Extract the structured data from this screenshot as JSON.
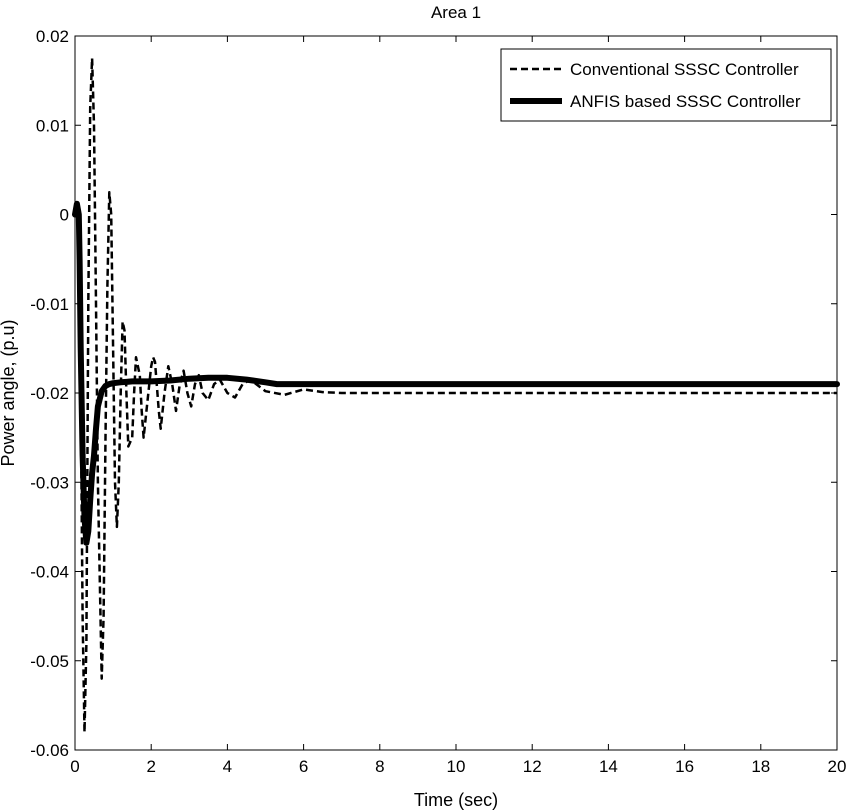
{
  "chart_data": {
    "type": "line",
    "title": "Area 1",
    "xlabel": "Time (sec)",
    "ylabel": "Power angle, (p.u)",
    "xlim": [
      0,
      20
    ],
    "ylim": [
      -0.06,
      0.02
    ],
    "x_ticks": [
      0,
      2,
      4,
      6,
      8,
      10,
      12,
      14,
      16,
      18,
      20
    ],
    "y_ticks": [
      0.02,
      0.01,
      0,
      -0.01,
      -0.02,
      -0.03,
      -0.04,
      -0.05,
      -0.06
    ],
    "x_tick_labels": [
      "0",
      "2",
      "4",
      "6",
      "8",
      "10",
      "12",
      "14",
      "16",
      "18",
      "20"
    ],
    "y_tick_labels": [
      "0.02",
      "0.01",
      "0",
      "-0.01",
      "-0.02",
      "-0.03",
      "-0.04",
      "-0.05",
      "-0.06"
    ],
    "grid": false,
    "legend_position": "top-right",
    "series": [
      {
        "name": "Conventional SSSC Controller",
        "style": "dashed",
        "color": "#000000",
        "x": [
          0,
          0.05,
          0.1,
          0.15,
          0.2,
          0.25,
          0.3,
          0.35,
          0.4,
          0.45,
          0.5,
          0.55,
          0.6,
          0.7,
          0.75,
          0.8,
          0.85,
          0.9,
          0.95,
          1.0,
          1.05,
          1.1,
          1.15,
          1.2,
          1.25,
          1.3,
          1.35,
          1.4,
          1.5,
          1.55,
          1.6,
          1.7,
          1.75,
          1.8,
          1.9,
          2.0,
          2.05,
          2.1,
          2.2,
          2.25,
          2.35,
          2.45,
          2.55,
          2.65,
          2.75,
          2.85,
          2.95,
          3.05,
          3.15,
          3.25,
          3.35,
          3.5,
          3.65,
          3.8,
          4.0,
          4.2,
          4.4,
          4.6,
          5.0,
          5.5,
          6.0,
          6.5,
          7.0,
          8.0,
          10.0,
          14.0,
          20.0
        ],
        "y": [
          0.0,
          0.001,
          -0.002,
          -0.02,
          -0.045,
          -0.058,
          -0.048,
          -0.01,
          0.012,
          0.0175,
          0.01,
          -0.01,
          -0.03,
          -0.052,
          -0.045,
          -0.025,
          -0.008,
          0.0025,
          0.0,
          -0.015,
          -0.03,
          -0.035,
          -0.03,
          -0.02,
          -0.012,
          -0.013,
          -0.02,
          -0.026,
          -0.025,
          -0.02,
          -0.016,
          -0.018,
          -0.022,
          -0.025,
          -0.021,
          -0.017,
          -0.016,
          -0.0165,
          -0.022,
          -0.024,
          -0.02,
          -0.017,
          -0.019,
          -0.022,
          -0.019,
          -0.0175,
          -0.02,
          -0.0215,
          -0.019,
          -0.018,
          -0.02,
          -0.0208,
          -0.019,
          -0.0185,
          -0.02,
          -0.0205,
          -0.019,
          -0.0185,
          -0.0198,
          -0.0202,
          -0.0196,
          -0.0199,
          -0.02,
          -0.02,
          -0.02,
          -0.02,
          -0.02
        ]
      },
      {
        "name": "ANFIS based SSSC Controller",
        "style": "solid",
        "color": "#000000",
        "x": [
          0,
          0.05,
          0.1,
          0.12,
          0.15,
          0.2,
          0.25,
          0.3,
          0.35,
          0.4,
          0.45,
          0.5,
          0.55,
          0.6,
          0.7,
          0.8,
          0.9,
          1.0,
          1.2,
          1.5,
          2.0,
          2.5,
          3.0,
          3.5,
          4.0,
          4.5,
          5.0,
          5.3,
          6.0,
          8.0,
          10.0,
          14.0,
          20.0
        ],
        "y": [
          0.0,
          0.0012,
          0.0,
          -0.005,
          -0.015,
          -0.027,
          -0.034,
          -0.0368,
          -0.0355,
          -0.032,
          -0.029,
          -0.027,
          -0.024,
          -0.0215,
          -0.0198,
          -0.0192,
          -0.019,
          -0.0189,
          -0.0188,
          -0.0187,
          -0.0187,
          -0.0186,
          -0.0184,
          -0.0183,
          -0.0183,
          -0.0185,
          -0.0188,
          -0.019,
          -0.019,
          -0.019,
          -0.019,
          -0.019,
          -0.019
        ]
      }
    ]
  }
}
